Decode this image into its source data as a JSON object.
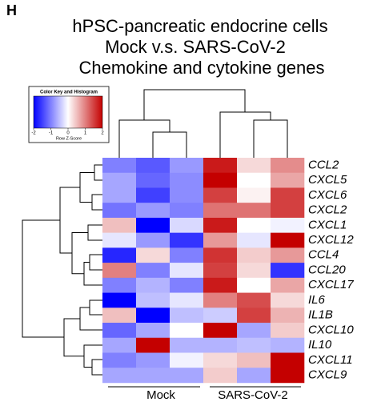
{
  "chart_data": {
    "type": "heatmap",
    "panel": "H",
    "title": [
      "hPSC-pancreatic endocrine cells",
      "Mock v.s. SARS-CoV-2",
      "Chemokine and cytokine genes"
    ],
    "rows": [
      "CCL2",
      "CXCL5",
      "CXCL6",
      "CXCL2",
      "CXCL1",
      "CXCL12",
      "CCL4",
      "CCL20",
      "CXCL17",
      "IL6",
      "IL1B",
      "CXCL10",
      "IL10",
      "CXCL11",
      "CXCL9"
    ],
    "groups": [
      {
        "label": "Mock",
        "columns": 3
      },
      {
        "label": "SARS-CoV-2",
        "columns": 3
      }
    ],
    "values": [
      [
        -1.0,
        -1.3,
        -0.8,
        1.8,
        0.3,
        0.9
      ],
      [
        -0.7,
        -1.2,
        -0.9,
        2.0,
        0.0,
        0.7
      ],
      [
        -0.7,
        -1.5,
        -0.9,
        1.5,
        0.1,
        1.5
      ],
      [
        -1.1,
        -0.8,
        -1.0,
        1.1,
        1.1,
        1.5
      ],
      [
        0.5,
        -2.0,
        -0.3,
        1.8,
        0.0,
        -0.1
      ],
      [
        -0.2,
        -0.8,
        -1.6,
        0.8,
        -0.2,
        2.0
      ],
      [
        -1.7,
        0.3,
        -1.0,
        1.6,
        0.4,
        0.8
      ],
      [
        1.0,
        -1.0,
        -0.2,
        1.5,
        0.3,
        -1.6
      ],
      [
        -1.0,
        -0.6,
        -1.0,
        1.8,
        0.0,
        0.7
      ],
      [
        -2.0,
        -0.5,
        -0.2,
        1.0,
        1.4,
        0.3
      ],
      [
        0.5,
        -2.0,
        -0.5,
        -0.4,
        1.5,
        0.6
      ],
      [
        -1.2,
        -0.7,
        0.0,
        2.0,
        -0.7,
        0.4
      ],
      [
        -0.7,
        2.0,
        -0.6,
        -0.6,
        -0.5,
        -0.6
      ],
      [
        -1.0,
        -0.8,
        -0.1,
        0.3,
        0.5,
        2.0
      ],
      [
        -0.7,
        -0.7,
        -0.7,
        0.4,
        -0.7,
        2.0
      ]
    ],
    "zlim": [
      -2,
      2
    ],
    "colors": {
      "low": "#0000ff",
      "mid": "#ffffff",
      "high": "#c40000"
    },
    "color_key": {
      "title": "Color Key and Histogram",
      "xlabel": "Row Z-Score",
      "xticks": [
        -2,
        -1,
        0,
        1,
        2
      ]
    }
  }
}
